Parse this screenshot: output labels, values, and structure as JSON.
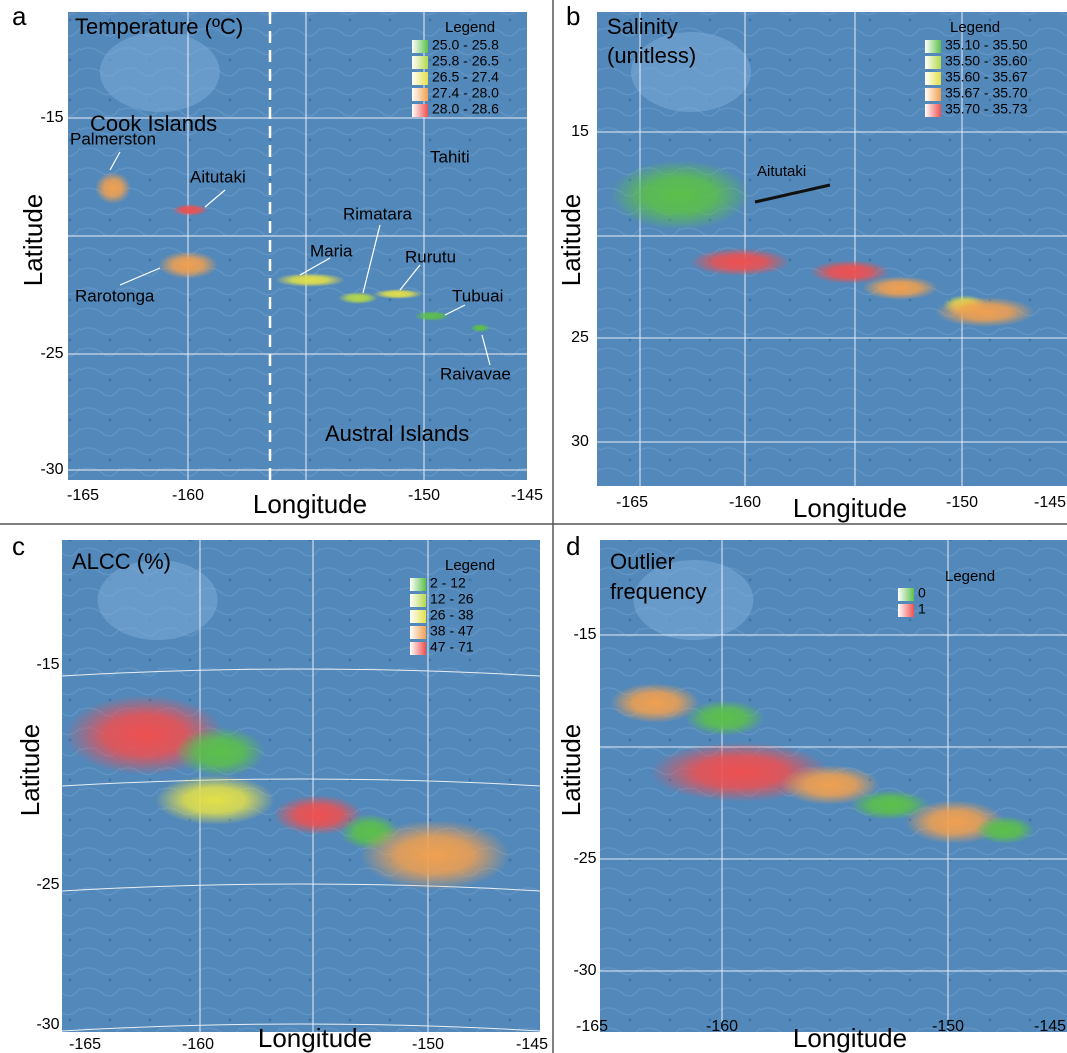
{
  "panels": [
    {
      "letter": "a",
      "title": [
        "Temperature (ºC)"
      ],
      "legend": {
        "title": "Legend",
        "entries": [
          {
            "label": "25.0 - 25.8",
            "color": "#5cc04a"
          },
          {
            "label": "25.8 - 26.5",
            "color": "#b5d84a"
          },
          {
            "label": "26.5 - 27.4",
            "color": "#e3e04a"
          },
          {
            "label": "27.4 - 28.0",
            "color": "#f0a050"
          },
          {
            "label": "28.0 - 28.6",
            "color": "#ef5050"
          }
        ]
      },
      "x_ticks": [
        -165,
        -160,
        -150,
        -145
      ],
      "y_ticks": [
        -15,
        -25,
        -30
      ],
      "x_label": "Longitude",
      "y_label": "Latitude",
      "places": [
        "Cook Islands",
        "Palmerston",
        "Aitutaki",
        "Rarotonga",
        "Maria",
        "Rimatara",
        "Rurutu",
        "Tahiti",
        "Tubuai",
        "Raivavae",
        "Austral Islands"
      ]
    },
    {
      "letter": "b",
      "title": [
        "Salinity",
        "(unitless)"
      ],
      "legend": {
        "title": "Legend",
        "entries": [
          {
            "label": "35.10 - 35.50",
            "color": "#5cc04a"
          },
          {
            "label": "35.50 - 35.60",
            "color": "#b5d84a"
          },
          {
            "label": "35.60 - 35.67",
            "color": "#e3e04a"
          },
          {
            "label": "35.67 - 35.70",
            "color": "#f0a050"
          },
          {
            "label": "35.70 - 35.73",
            "color": "#ef5050"
          }
        ]
      },
      "x_ticks": [
        -165,
        -160,
        -150,
        -145
      ],
      "y_ticks": [
        15,
        25,
        30
      ],
      "x_label": "Longitude",
      "y_label": "Latitude",
      "places": [
        "Aitutaki"
      ]
    },
    {
      "letter": "c",
      "title": [
        "ALCC (%)"
      ],
      "legend": {
        "title": "Legend",
        "entries": [
          {
            "label": "2 - 12",
            "color": "#5cc04a"
          },
          {
            "label": "12 - 26",
            "color": "#b5d84a"
          },
          {
            "label": "26 - 38",
            "color": "#e3e04a"
          },
          {
            "label": "38 - 47",
            "color": "#f0a050"
          },
          {
            "label": "47 - 71",
            "color": "#ef5050"
          }
        ]
      },
      "x_ticks": [
        -165,
        -160,
        -150,
        -145
      ],
      "y_ticks": [
        -15,
        -25,
        -30
      ],
      "x_label": "Longitude",
      "y_label": "Latitude",
      "places": []
    },
    {
      "letter": "d",
      "title": [
        "Outlier",
        "frequency"
      ],
      "legend": {
        "title": "Legend",
        "entries": [
          {
            "label": "0",
            "color": "#5cc04a"
          },
          {
            "label": "1",
            "color": "#ef5050"
          }
        ]
      },
      "x_ticks": [
        -165,
        -160,
        -150,
        -145
      ],
      "y_ticks": [
        -15,
        -25,
        -30
      ],
      "x_label": "Longitude",
      "y_label": "Latitude",
      "places": []
    }
  ]
}
